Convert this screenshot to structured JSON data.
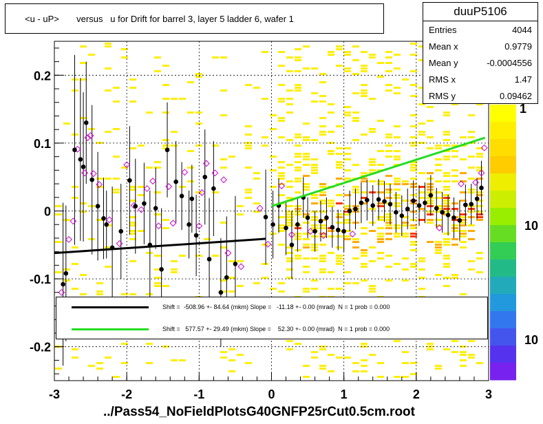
{
  "title": "<u - uP>       versus   u for Drift for barrel 3, layer 5 ladder 6, wafer 1",
  "stats": {
    "name": "duuP5106",
    "rows": [
      {
        "label": "Entries",
        "value": "4044"
      },
      {
        "label": "Mean x",
        "value": "0.9779"
      },
      {
        "label": "Mean y",
        "value": "-0.0004556"
      },
      {
        "label": "RMS x",
        "value": "1.47"
      },
      {
        "label": "RMS y",
        "value": "0.09462"
      }
    ]
  },
  "fits": [
    {
      "color": "#000000",
      "text": "Shift =  -508.96 +- 84.64 (mkm) Slope =   -11.18 +- 0.00 (mrad)  N = 1 prob = 0.000"
    },
    {
      "color": "#22dd22",
      "text": "Shift =   577.57 +- 29.49 (mkm) Slope =    52.30 +- 0.00 (mrad)  N = 1 prob = 0.000"
    }
  ],
  "xlabel": "../Pass54_NoFieldPlotsG40GNFP25rCut0.5cm.root",
  "palette_labels": [
    "1",
    "10",
    "10"
  ],
  "chart_data": {
    "type": "scatter",
    "title": "<u - uP>       versus   u for Drift for barrel 3, layer 5 ladder 6, wafer 1",
    "xlabel": "../Pass54_NoFieldPlotsG40GNFP25rCut0.5cm.root",
    "ylabel": "",
    "xlim": [
      -3,
      3
    ],
    "ylim": [
      -0.25,
      0.25
    ],
    "x_ticks": [
      -3,
      -2,
      -1,
      0,
      1,
      2,
      3
    ],
    "y_ticks": [
      -0.2,
      -0.1,
      0,
      0.1,
      0.2
    ],
    "y_tick_labels": [
      "-0.2",
      "-0.1",
      "0",
      "0.1",
      "0.2"
    ],
    "grid": true,
    "colors": {
      "density_low": "#ffee00",
      "density_mid": "#ffaa00",
      "density_high": "#ff3300",
      "profile": "#000000",
      "profile_alt": "#cc00cc",
      "fit1": "#000000",
      "fit2": "#22dd22"
    },
    "fit_lines": [
      {
        "x": [
          -3,
          -0.08
        ],
        "y": [
          -0.062,
          -0.041
        ],
        "color": "#000000"
      },
      {
        "x": [
          0,
          2.95
        ],
        "y": [
          0.007,
          0.108
        ],
        "color": "#22dd22"
      }
    ],
    "profile_points": [
      {
        "x": -2.88,
        "y": -0.108,
        "err": 0.12
      },
      {
        "x": -2.84,
        "y": -0.092,
        "err": 0.1
      },
      {
        "x": -2.72,
        "y": 0.09,
        "err": 0.14
      },
      {
        "x": -2.64,
        "y": 0.076,
        "err": 0.12
      },
      {
        "x": -2.6,
        "y": 0.065,
        "err": 0.11
      },
      {
        "x": -2.56,
        "y": 0.13,
        "err": 0.09
      },
      {
        "x": -2.48,
        "y": 0.046,
        "err": 0.11
      },
      {
        "x": -2.4,
        "y": 0.007,
        "err": 0.08
      },
      {
        "x": -2.32,
        "y": -0.011,
        "err": 0.06
      },
      {
        "x": -2.28,
        "y": -0.02,
        "err": 0.05
      },
      {
        "x": -2.2,
        "y": -0.054,
        "err": 0.09
      },
      {
        "x": -2.08,
        "y": -0.03,
        "err": 0.07
      },
      {
        "x": -1.96,
        "y": 0.045,
        "err": 0.08
      },
      {
        "x": -1.88,
        "y": 0.007,
        "err": 0.07
      },
      {
        "x": -1.76,
        "y": 0.011,
        "err": 0.06
      },
      {
        "x": -1.68,
        "y": -0.05,
        "err": 0.08
      },
      {
        "x": -1.6,
        "y": 0.004,
        "err": 0.06
      },
      {
        "x": -1.52,
        "y": -0.086,
        "err": 0.09
      },
      {
        "x": -1.44,
        "y": 0.09,
        "err": 0.07
      },
      {
        "x": -1.32,
        "y": 0.043,
        "err": 0.06
      },
      {
        "x": -1.24,
        "y": 0.022,
        "err": 0.05
      },
      {
        "x": -1.14,
        "y": -0.02,
        "err": 0.05
      },
      {
        "x": -1.1,
        "y": 0.018,
        "err": 0.05
      },
      {
        "x": -1.04,
        "y": -0.036,
        "err": 0.06
      },
      {
        "x": -0.92,
        "y": 0.05,
        "err": 0.07
      },
      {
        "x": -0.86,
        "y": -0.071,
        "err": 0.09
      },
      {
        "x": -0.8,
        "y": 0.033,
        "err": 0.07
      },
      {
        "x": -0.7,
        "y": -0.12,
        "err": 0.08
      },
      {
        "x": -0.62,
        "y": -0.098,
        "err": 0.09
      },
      {
        "x": -0.5,
        "y": -0.078,
        "err": 0.1
      },
      {
        "x": -0.08,
        "y": -0.009,
        "err": 0.07
      },
      {
        "x": 0.02,
        "y": -0.02,
        "err": 0.05
      },
      {
        "x": 0.1,
        "y": 0.008,
        "err": 0.04
      },
      {
        "x": 0.2,
        "y": -0.025,
        "err": 0.04
      },
      {
        "x": 0.28,
        "y": -0.05,
        "err": 0.05
      },
      {
        "x": 0.36,
        "y": -0.02,
        "err": 0.04
      },
      {
        "x": 0.44,
        "y": 0.02,
        "err": 0.03
      },
      {
        "x": 0.5,
        "y": -0.01,
        "err": 0.03
      },
      {
        "x": 0.6,
        "y": -0.03,
        "err": 0.03
      },
      {
        "x": 0.68,
        "y": -0.015,
        "err": 0.03
      },
      {
        "x": 0.76,
        "y": -0.01,
        "err": 0.03
      },
      {
        "x": 0.84,
        "y": -0.024,
        "err": 0.03
      },
      {
        "x": 0.92,
        "y": -0.028,
        "err": 0.03
      },
      {
        "x": 1.0,
        "y": -0.03,
        "err": 0.03
      },
      {
        "x": 1.08,
        "y": 0.0,
        "err": 0.03
      },
      {
        "x": 1.16,
        "y": 0.003,
        "err": 0.03
      },
      {
        "x": 1.24,
        "y": 0.012,
        "err": 0.03
      },
      {
        "x": 1.32,
        "y": 0.016,
        "err": 0.03
      },
      {
        "x": 1.4,
        "y": 0.008,
        "err": 0.03
      },
      {
        "x": 1.48,
        "y": 0.017,
        "err": 0.03
      },
      {
        "x": 1.56,
        "y": 0.014,
        "err": 0.03
      },
      {
        "x": 1.64,
        "y": 0.01,
        "err": 0.03
      },
      {
        "x": 1.72,
        "y": -0.002,
        "err": 0.03
      },
      {
        "x": 1.8,
        "y": -0.007,
        "err": 0.03
      },
      {
        "x": 1.88,
        "y": 0.003,
        "err": 0.03
      },
      {
        "x": 1.96,
        "y": 0.015,
        "err": 0.03
      },
      {
        "x": 2.04,
        "y": 0.008,
        "err": 0.03
      },
      {
        "x": 2.12,
        "y": 0.012,
        "err": 0.03
      },
      {
        "x": 2.2,
        "y": 0.023,
        "err": 0.03
      },
      {
        "x": 2.28,
        "y": 0.004,
        "err": 0.03
      },
      {
        "x": 2.36,
        "y": -0.002,
        "err": 0.03
      },
      {
        "x": 2.44,
        "y": -0.006,
        "err": 0.03
      },
      {
        "x": 2.52,
        "y": -0.01,
        "err": 0.03
      },
      {
        "x": 2.6,
        "y": -0.014,
        "err": 0.03
      },
      {
        "x": 2.68,
        "y": 0.009,
        "err": 0.03
      },
      {
        "x": 2.76,
        "y": 0.01,
        "err": 0.03
      },
      {
        "x": 2.84,
        "y": 0.018,
        "err": 0.03
      },
      {
        "x": 2.9,
        "y": 0.034,
        "err": 0.04
      }
    ],
    "alt_points": [
      {
        "x": -2.9,
        "y": -0.12
      },
      {
        "x": -2.8,
        "y": -0.042
      },
      {
        "x": -2.74,
        "y": -0.015
      },
      {
        "x": -2.68,
        "y": 0.091
      },
      {
        "x": -2.58,
        "y": 0.056
      },
      {
        "x": -2.54,
        "y": 0.108
      },
      {
        "x": -2.5,
        "y": 0.111
      },
      {
        "x": -2.46,
        "y": 0.055
      },
      {
        "x": -2.38,
        "y": 0.039
      },
      {
        "x": -2.24,
        "y": -0.013
      },
      {
        "x": -2.1,
        "y": -0.048
      },
      {
        "x": -2.0,
        "y": 0.068
      },
      {
        "x": -1.9,
        "y": 0.008
      },
      {
        "x": -1.8,
        "y": 0.002
      },
      {
        "x": -1.72,
        "y": 0.033
      },
      {
        "x": -1.64,
        "y": 0.044
      },
      {
        "x": -1.56,
        "y": -0.022
      },
      {
        "x": -1.42,
        "y": 0.036
      },
      {
        "x": -1.36,
        "y": -0.018
      },
      {
        "x": -1.2,
        "y": 0.057
      },
      {
        "x": -1.0,
        "y": -0.022
      },
      {
        "x": -0.96,
        "y": 0.027
      },
      {
        "x": -0.9,
        "y": 0.07
      },
      {
        "x": -0.78,
        "y": 0.056
      },
      {
        "x": -0.66,
        "y": 0.046
      },
      {
        "x": -0.6,
        "y": -0.062
      },
      {
        "x": -0.42,
        "y": -0.082
      },
      {
        "x": -0.16,
        "y": 0.004
      },
      {
        "x": -0.05,
        "y": -0.049
      },
      {
        "x": 0.14,
        "y": 0.037
      },
      {
        "x": 0.28,
        "y": -0.035
      },
      {
        "x": 0.54,
        "y": -0.03
      },
      {
        "x": 0.72,
        "y": -0.036
      },
      {
        "x": 1.12,
        "y": -0.034
      },
      {
        "x": 2.32,
        "y": -0.025
      },
      {
        "x": 2.62,
        "y": 0.04
      },
      {
        "x": 2.82,
        "y": 0.042
      },
      {
        "x": 2.9,
        "y": 0.056
      },
      {
        "x": 2.94,
        "y": 0.093
      }
    ]
  }
}
